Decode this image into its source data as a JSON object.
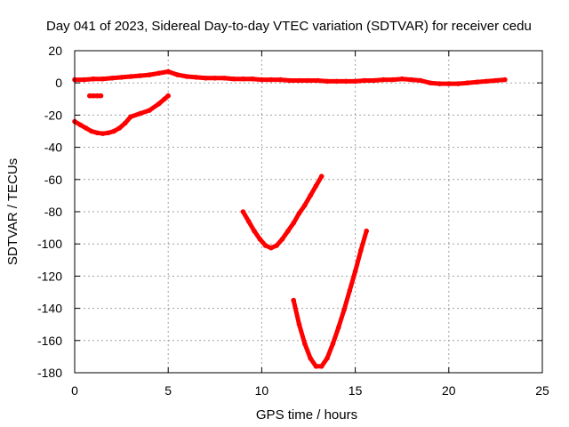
{
  "chart_data": {
    "type": "scatter",
    "title": "Day 041 of 2023, Sidereal Day-to-day VTEC variation (SDTVAR) for receiver cedu",
    "xlabel": "GPS time / hours",
    "ylabel": "SDTVAR / TECUs",
    "xlim": [
      0,
      25
    ],
    "ylim": [
      -180,
      20
    ],
    "xticks": [
      0,
      5,
      10,
      15,
      20,
      25
    ],
    "yticks": [
      20,
      0,
      -20,
      -40,
      -60,
      -80,
      -100,
      -120,
      -140,
      -160,
      -180
    ],
    "grid": true,
    "legend": "none",
    "color": "#ff0000",
    "series": [
      {
        "values": [
          [
            0.0,
            2
          ],
          [
            0.5,
            2
          ],
          [
            1.0,
            2.5
          ],
          [
            1.5,
            2.5
          ],
          [
            2.0,
            3
          ],
          [
            2.5,
            3.5
          ],
          [
            3.0,
            4
          ],
          [
            3.5,
            4.5
          ],
          [
            4.0,
            5
          ],
          [
            4.5,
            6
          ],
          [
            5.0,
            7
          ],
          [
            5.5,
            5
          ],
          [
            6.0,
            4
          ],
          [
            6.5,
            3.5
          ],
          [
            7.0,
            3
          ],
          [
            7.5,
            3
          ],
          [
            8.0,
            3
          ],
          [
            8.5,
            2.5
          ],
          [
            9.0,
            2.5
          ],
          [
            9.5,
            2.5
          ],
          [
            10.0,
            2
          ],
          [
            10.5,
            2
          ],
          [
            11.0,
            2
          ],
          [
            11.5,
            1.5
          ],
          [
            12.0,
            1.5
          ],
          [
            12.5,
            1.5
          ],
          [
            13.0,
            1.5
          ],
          [
            13.5,
            1
          ],
          [
            14.0,
            1
          ],
          [
            14.5,
            1
          ],
          [
            15.0,
            1
          ],
          [
            15.5,
            1.5
          ],
          [
            16.0,
            1.5
          ],
          [
            16.5,
            2
          ],
          [
            17.0,
            2
          ],
          [
            17.5,
            2.5
          ],
          [
            18.0,
            2
          ],
          [
            18.5,
            1.5
          ],
          [
            19.0,
            0
          ],
          [
            19.5,
            -0.5
          ],
          [
            20.0,
            -0.5
          ],
          [
            20.5,
            -0.5
          ],
          [
            21.0,
            0
          ],
          [
            21.5,
            0.5
          ],
          [
            22.0,
            1
          ],
          [
            22.5,
            1.5
          ],
          [
            23.0,
            2
          ]
        ]
      },
      {
        "values": [
          [
            0.8,
            -8
          ],
          [
            1.0,
            -8
          ],
          [
            1.2,
            -8
          ],
          [
            1.4,
            -8
          ]
        ]
      },
      {
        "values": [
          [
            0.0,
            -24
          ],
          [
            0.3,
            -26
          ],
          [
            0.6,
            -28
          ],
          [
            0.9,
            -30
          ],
          [
            1.2,
            -31
          ],
          [
            1.5,
            -31.5
          ],
          [
            1.8,
            -31
          ],
          [
            2.1,
            -30
          ],
          [
            2.4,
            -28
          ],
          [
            2.7,
            -25
          ],
          [
            3.0,
            -21
          ],
          [
            3.5,
            -19
          ],
          [
            4.0,
            -17
          ],
          [
            4.5,
            -13
          ],
          [
            4.8,
            -10
          ],
          [
            5.0,
            -8
          ]
        ]
      },
      {
        "values": [
          [
            9.0,
            -80
          ],
          [
            9.3,
            -86
          ],
          [
            9.6,
            -92
          ],
          [
            9.9,
            -97
          ],
          [
            10.2,
            -101
          ],
          [
            10.5,
            -102.5
          ],
          [
            10.8,
            -101
          ],
          [
            11.1,
            -97
          ],
          [
            11.4,
            -92
          ],
          [
            11.7,
            -87
          ],
          [
            12.0,
            -81
          ],
          [
            12.3,
            -76
          ],
          [
            12.6,
            -70
          ],
          [
            12.9,
            -64
          ],
          [
            13.2,
            -58
          ]
        ]
      },
      {
        "values": [
          [
            11.7,
            -135
          ],
          [
            12.0,
            -150
          ],
          [
            12.3,
            -162
          ],
          [
            12.6,
            -171
          ],
          [
            12.9,
            -176
          ],
          [
            13.2,
            -176
          ],
          [
            13.5,
            -171
          ],
          [
            13.8,
            -162
          ],
          [
            14.1,
            -152
          ],
          [
            14.4,
            -141
          ],
          [
            14.7,
            -129
          ],
          [
            15.0,
            -117
          ],
          [
            15.3,
            -104
          ],
          [
            15.6,
            -92
          ]
        ]
      }
    ]
  }
}
